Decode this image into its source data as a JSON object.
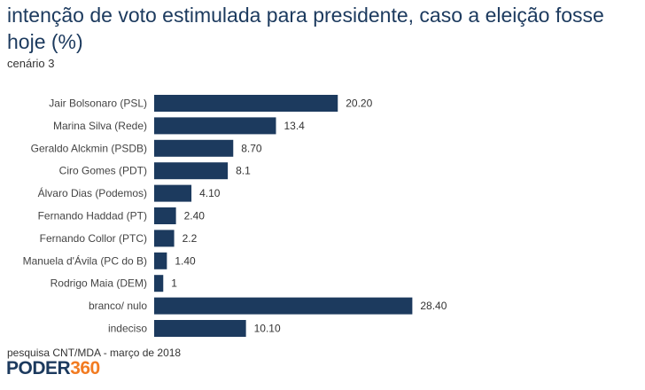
{
  "title": "intenção de voto estimulada para presidente, caso a eleição fosse hoje (%)",
  "subtitle": "cenário 3",
  "source": "pesquisa CNT/MDA - março de 2018",
  "logo": {
    "part1": "PODER",
    "part2": "360"
  },
  "colors": {
    "bar": "#1c3a5e",
    "title": "#1c3a5e",
    "logo_accent": "#f27b21"
  },
  "chart_data": {
    "type": "bar",
    "orientation": "horizontal",
    "categories": [
      "Jair Bolsonaro (PSL)",
      "Marina Silva (Rede)",
      "Geraldo Alckmin (PSDB)",
      "Ciro Gomes (PDT)",
      "Álvaro Dias (Podemos)",
      "Fernando Haddad (PT)",
      "Fernando Collor (PTC)",
      "Manuela d'Ávila (PC do B)",
      "Rodrigo Maia (DEM)",
      "branco/ nulo",
      "indeciso"
    ],
    "values": [
      20.2,
      13.4,
      8.7,
      8.1,
      4.1,
      2.4,
      2.2,
      1.4,
      1,
      28.4,
      10.1
    ],
    "value_labels": [
      "20.20",
      "13.4",
      "8.70",
      "8.1",
      "4.10",
      "2.40",
      "2.2",
      "1.40",
      "1",
      "28.40",
      "10.10"
    ],
    "grid": false,
    "legend": "none"
  }
}
